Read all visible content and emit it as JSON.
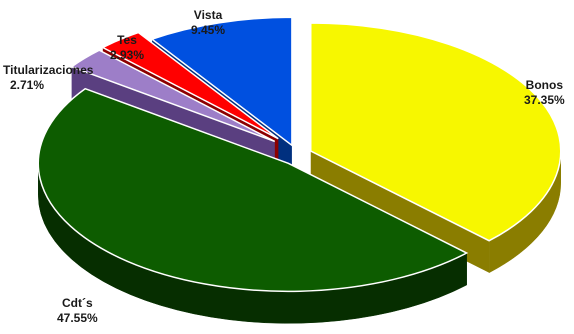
{
  "chart_data": {
    "type": "pie",
    "style": "3d-exploded",
    "legend": "none",
    "slices": [
      {
        "name": "Bonos",
        "label": "Bonos",
        "value_label": "37.35%",
        "value": 37.35,
        "color": "#f7f700",
        "side": "#8a7d00"
      },
      {
        "name": "Cdt´s",
        "label": "Cdt´s",
        "value_label": "47.55%",
        "value": 47.55,
        "color": "#0d5c00",
        "side": "#062e00"
      },
      {
        "name": "Titularizaciones",
        "label": "Titularizaciones",
        "value_label": "2.71%",
        "value": 2.71,
        "color": "#9d7ec8",
        "side": "#5a3f80"
      },
      {
        "name": "Tes",
        "label": "Tes",
        "value_label": "2.93%",
        "value": 2.93,
        "color": "#ff0000",
        "side": "#8c0000"
      },
      {
        "name": "Vista",
        "label": "Vista",
        "value_label": "9.45%",
        "value": 9.45,
        "color": "#0050e0",
        "side": "#00307f"
      }
    ]
  }
}
